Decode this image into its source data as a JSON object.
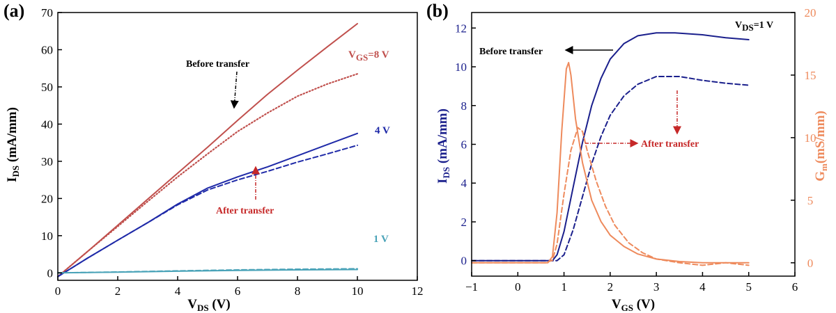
{
  "chart_data": [
    {
      "panel": "(a)",
      "type": "line",
      "xlabel": "V",
      "xlabel_sub": "DS",
      "xlabel_suffix": " (V)",
      "ylabel": "I",
      "ylabel_sub": "DS",
      "ylabel_suffix": " (mA/mm)",
      "xlim": [
        0,
        12
      ],
      "ylim": [
        -2,
        70
      ],
      "xticks": [
        0,
        2,
        4,
        6,
        8,
        10,
        12
      ],
      "yticks": [
        0,
        10,
        20,
        30,
        40,
        50,
        60,
        70
      ],
      "grid": false,
      "series": [
        {
          "name": "VGS=8 V before transfer",
          "color": "#c0504d",
          "dash": "solid",
          "x": [
            0,
            1,
            2,
            3,
            4,
            5,
            6,
            7,
            8,
            9,
            10
          ],
          "y": [
            -1,
            5.8,
            12.8,
            19.8,
            26.8,
            33.8,
            41,
            48,
            54.5,
            60.8,
            67
          ]
        },
        {
          "name": "VGS=8 V after transfer",
          "color": "#c0504d",
          "dash": "dotted",
          "x": [
            0,
            1,
            2,
            3,
            4,
            5,
            6,
            7,
            8,
            9,
            10
          ],
          "y": [
            -1,
            5.8,
            12.5,
            19.2,
            25.8,
            32,
            38,
            43,
            47.5,
            50.8,
            53.5
          ]
        },
        {
          "name": "4 V before transfer",
          "color": "#1f2aa8",
          "dash": "solid",
          "x": [
            0,
            1,
            2,
            3,
            4,
            5,
            6,
            7,
            8,
            9,
            10
          ],
          "y": [
            -1,
            4,
            8.8,
            13.5,
            18.5,
            22.8,
            25.8,
            28.5,
            31.5,
            34.5,
            37.5
          ]
        },
        {
          "name": "4 V after transfer",
          "color": "#1f2aa8",
          "dash": "dashed",
          "x": [
            0,
            1,
            2,
            3,
            4,
            5,
            6,
            7,
            8,
            9,
            10
          ],
          "y": [
            -1,
            4,
            8.8,
            13.5,
            18.3,
            22.3,
            25,
            27.3,
            29.8,
            32,
            34.3
          ]
        },
        {
          "name": "1 V before transfer",
          "color": "#4aa3b8",
          "dash": "solid",
          "x": [
            0,
            2,
            4,
            6,
            8,
            10
          ],
          "y": [
            0,
            0.2,
            0.45,
            0.65,
            0.8,
            0.9
          ]
        },
        {
          "name": "1 V after transfer",
          "color": "#4aa3b8",
          "dash": "dashed",
          "x": [
            0,
            2,
            4,
            6,
            8,
            10
          ],
          "y": [
            0,
            0.25,
            0.55,
            0.8,
            1.0,
            1.1
          ]
        }
      ],
      "annotations": {
        "before_transfer": "Before transfer",
        "after_transfer": "After transfer",
        "vgs_8": "V",
        "vgs_8_sub": "GS",
        "vgs_8_suffix": "=8 V",
        "v4": "4 V",
        "v1": "1 V"
      }
    },
    {
      "panel": "(b)",
      "type": "line",
      "xlabel": "V",
      "xlabel_sub": "GS",
      "xlabel_suffix": " (V)",
      "ylabel": "I",
      "ylabel_sub": "DS",
      "ylabel_suffix": " (mA/mm)",
      "y2label": "G",
      "y2label_sub": "m",
      "y2label_suffix": "(mS/mm)",
      "xlim": [
        -1,
        6
      ],
      "ylim": [
        -0.8,
        12.8
      ],
      "y2lim": [
        -1.067,
        20
      ],
      "xticks": [
        -1,
        0,
        1,
        2,
        3,
        4,
        5,
        6
      ],
      "xtick_labels": [
        "−1",
        "0",
        "1",
        "2",
        "3",
        "4",
        "5",
        "6"
      ],
      "yticks": [
        0,
        2,
        4,
        6,
        8,
        10,
        12
      ],
      "y2ticks": [
        0,
        5,
        10,
        15,
        20
      ],
      "grid": false,
      "series": [
        {
          "name": "IDS before transfer",
          "axis": "left",
          "color": "#1a1f8c",
          "dash": "solid",
          "x": [
            -1,
            0.5,
            0.75,
            0.85,
            1.0,
            1.2,
            1.4,
            1.6,
            1.8,
            2.0,
            2.3,
            2.6,
            3.0,
            3.4,
            4.0,
            4.5,
            5.0
          ],
          "y": [
            0,
            0,
            0,
            0.3,
            1.5,
            3.8,
            6.1,
            8.0,
            9.4,
            10.4,
            11.2,
            11.6,
            11.75,
            11.75,
            11.65,
            11.5,
            11.4
          ]
        },
        {
          "name": "IDS after transfer",
          "axis": "left",
          "color": "#1a1f8c",
          "dash": "dashed",
          "x": [
            -1,
            0.85,
            1.0,
            1.2,
            1.4,
            1.6,
            1.8,
            2.0,
            2.3,
            2.6,
            3.0,
            3.5,
            4.0,
            4.5,
            5.0
          ],
          "y": [
            0,
            0,
            0.3,
            1.6,
            3.3,
            5.0,
            6.4,
            7.5,
            8.5,
            9.1,
            9.5,
            9.5,
            9.3,
            9.15,
            9.05
          ]
        },
        {
          "name": "Gm before transfer",
          "axis": "right",
          "color": "#ee8a5c",
          "dash": "solid",
          "x": [
            -1,
            0.5,
            0.65,
            0.75,
            0.85,
            0.95,
            1.05,
            1.1,
            1.15,
            1.25,
            1.4,
            1.6,
            1.8,
            2.0,
            2.3,
            2.6,
            3.0,
            3.5,
            4.0,
            4.5,
            5.0
          ],
          "y": [
            0,
            0,
            0,
            0.5,
            4.0,
            10.5,
            15.5,
            16.0,
            15.0,
            11.5,
            8.0,
            5.0,
            3.3,
            2.2,
            1.3,
            0.7,
            0.3,
            0.1,
            0,
            0,
            0
          ]
        },
        {
          "name": "Gm after transfer",
          "axis": "right",
          "color": "#ee8a5c",
          "dash": "dashed",
          "x": [
            -1,
            0.6,
            0.75,
            0.85,
            1.0,
            1.15,
            1.3,
            1.4,
            1.5,
            1.7,
            1.9,
            2.1,
            2.4,
            2.7,
            3.0,
            3.5,
            4.0,
            4.5,
            5.0
          ],
          "y": [
            0,
            0,
            0.2,
            1.5,
            5.5,
            9.0,
            10.8,
            10.5,
            9.0,
            6.5,
            4.5,
            3.0,
            1.6,
            0.8,
            0.3,
            0,
            -0.2,
            0,
            -0.2
          ]
        }
      ],
      "annotations": {
        "vds": "V",
        "vds_sub": "DS",
        "vds_suffix": "=1 V",
        "before_transfer": "Before transfer",
        "after_transfer": "After transfer"
      }
    }
  ]
}
